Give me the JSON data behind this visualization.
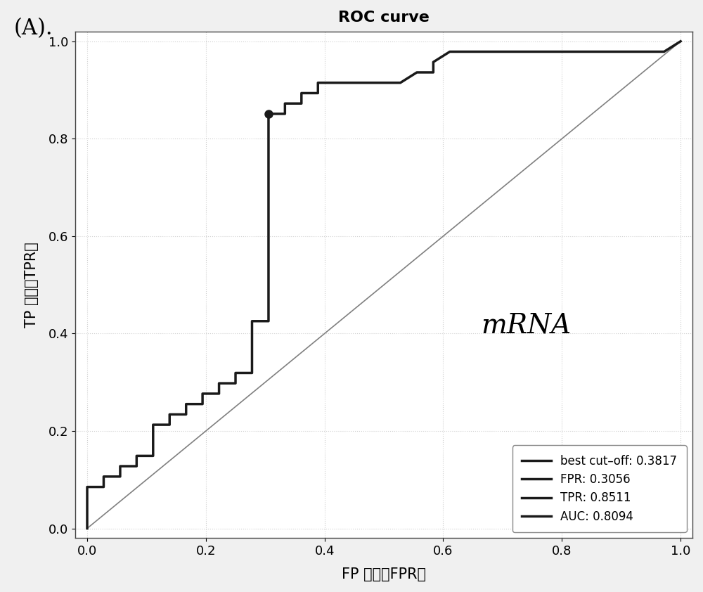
{
  "title": "ROC curve",
  "panel_label": "(A).",
  "xlabel": "FP 比例（FPR）",
  "ylabel": "TP 比例（TPR）",
  "annotation_text": "mRNA",
  "legend_entries": [
    "best cut–off: 0.3817",
    "FPR: 0.3056",
    "TPR: 0.8511",
    "AUC: 0.8094"
  ],
  "best_point": [
    0.3056,
    0.8511
  ],
  "roc_color": "#1a1a1a",
  "diagonal_color": "#808080",
  "background_color": "#f0f0f0",
  "plot_bg_color": "#ffffff",
  "grid_color": "#d0d0d0",
  "figsize": [
    10.0,
    8.42
  ],
  "dpi": 100,
  "roc_fpr": [
    0.0,
    0.0,
    0.0,
    0.0,
    0.0,
    0.0278,
    0.0278,
    0.0556,
    0.0556,
    0.0833,
    0.0833,
    0.1111,
    0.1111,
    0.1389,
    0.1389,
    0.1667,
    0.1667,
    0.1944,
    0.1944,
    0.2222,
    0.2222,
    0.25,
    0.25,
    0.2778,
    0.2778,
    0.3056,
    0.3056,
    0.3333,
    0.3333,
    0.3611,
    0.3611,
    0.3889,
    0.3889,
    0.4167,
    0.4444,
    0.4722,
    0.5,
    0.5278,
    0.5556,
    0.5833,
    0.5833,
    0.6111,
    0.6389,
    0.6667,
    0.6944,
    0.7222,
    0.75,
    0.7778,
    0.8056,
    0.8333,
    0.8611,
    0.8889,
    0.9167,
    0.9444,
    0.9722,
    1.0
  ],
  "roc_tpr": [
    0.0,
    0.0213,
    0.0426,
    0.0638,
    0.0851,
    0.0851,
    0.1064,
    0.1064,
    0.1277,
    0.1277,
    0.1489,
    0.1489,
    0.2128,
    0.2128,
    0.234,
    0.234,
    0.2553,
    0.2553,
    0.2766,
    0.2766,
    0.2979,
    0.2979,
    0.3191,
    0.3191,
    0.4255,
    0.4255,
    0.8511,
    0.8511,
    0.8723,
    0.8723,
    0.8936,
    0.8936,
    0.9149,
    0.9149,
    0.9149,
    0.9149,
    0.9149,
    0.9149,
    0.9362,
    0.9362,
    0.9574,
    0.9787,
    0.9787,
    0.9787,
    0.9787,
    0.9787,
    0.9787,
    0.9787,
    0.9787,
    0.9787,
    0.9787,
    0.9787,
    0.9787,
    0.9787,
    0.9787,
    1.0
  ]
}
